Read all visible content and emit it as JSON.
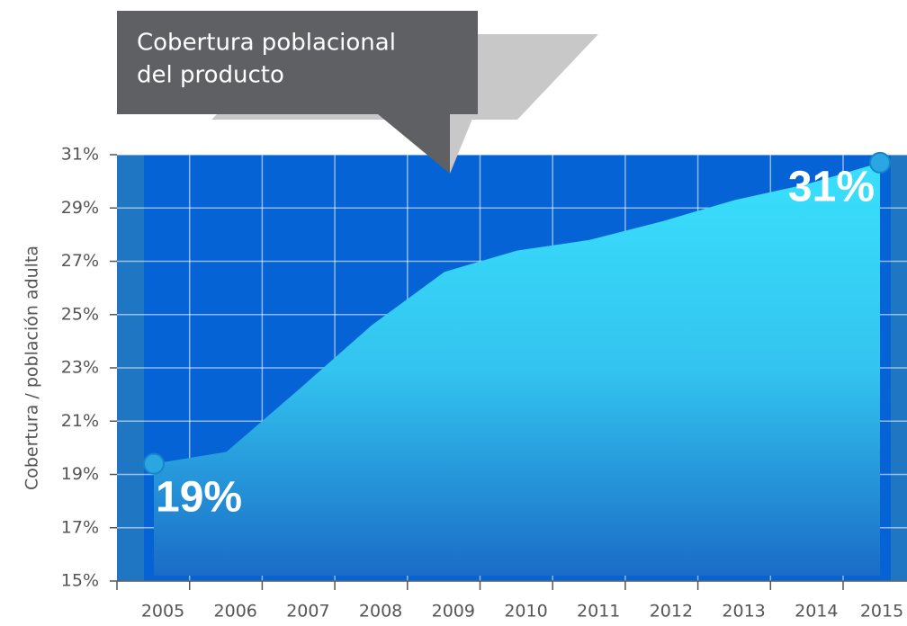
{
  "chart_data": {
    "type": "area",
    "annotation": [
      "Cobertura poblacional",
      "del producto"
    ],
    "y_label": "Cobertura / población adulta",
    "x": [
      2005,
      2006,
      2007,
      2008,
      2009,
      2010,
      2011,
      2012,
      2013,
      2014,
      2015
    ],
    "values": [
      19.4,
      19.85,
      22.2,
      24.6,
      26.6,
      27.4,
      27.8,
      28.5,
      29.3,
      29.9,
      30.7
    ],
    "value_labels": [
      "19%",
      null,
      null,
      null,
      null,
      null,
      null,
      null,
      null,
      null,
      "31%"
    ],
    "color": "#38dcfc",
    "ylim": [
      15,
      31
    ],
    "yticks": [
      {
        "value": 15,
        "label": "15%"
      },
      {
        "value": 17,
        "label": "17%"
      },
      {
        "value": 19,
        "label": "19%"
      },
      {
        "value": 21,
        "label": "21%"
      },
      {
        "value": 23,
        "label": "23%"
      },
      {
        "value": 25,
        "label": "25%"
      },
      {
        "value": 27,
        "label": "27%"
      },
      {
        "value": 29,
        "label": "29%"
      },
      {
        "value": 31,
        "label": "31%"
      }
    ],
    "grid": true
  }
}
